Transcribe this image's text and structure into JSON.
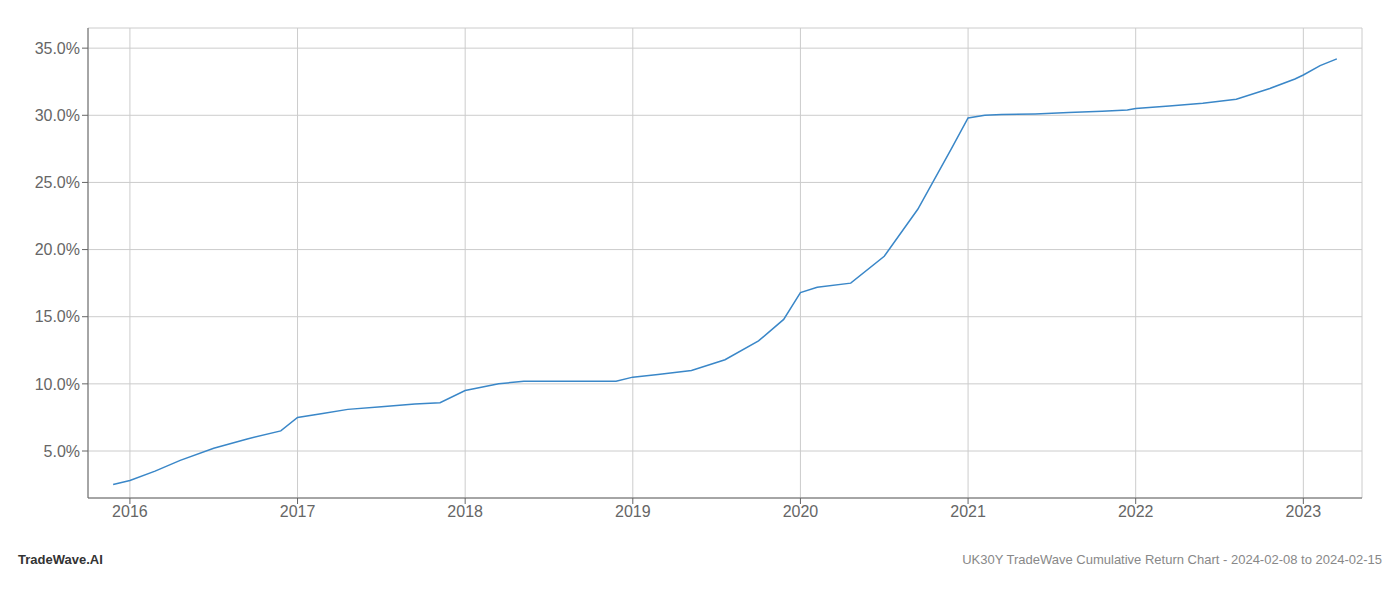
{
  "chart_data": {
    "type": "line",
    "x": [
      2015.9,
      2016.0,
      2016.15,
      2016.3,
      2016.5,
      2016.7,
      2016.9,
      2017.0,
      2017.15,
      2017.3,
      2017.5,
      2017.7,
      2017.85,
      2018.0,
      2018.2,
      2018.35,
      2018.55,
      2018.75,
      2018.9,
      2019.0,
      2019.15,
      2019.35,
      2019.55,
      2019.75,
      2019.9,
      2020.0,
      2020.1,
      2020.3,
      2020.5,
      2020.7,
      2020.9,
      2021.0,
      2021.1,
      2021.2,
      2021.4,
      2021.6,
      2021.8,
      2021.95,
      2022.0,
      2022.2,
      2022.4,
      2022.6,
      2022.8,
      2022.95,
      2023.0,
      2023.1,
      2023.2
    ],
    "values": [
      2.5,
      2.8,
      3.5,
      4.3,
      5.2,
      5.9,
      6.5,
      7.5,
      7.8,
      8.1,
      8.3,
      8.5,
      8.6,
      9.5,
      10.0,
      10.2,
      10.2,
      10.2,
      10.2,
      10.5,
      10.7,
      11.0,
      11.8,
      13.2,
      14.8,
      16.8,
      17.2,
      17.5,
      19.5,
      23.0,
      27.5,
      29.8,
      30.0,
      30.05,
      30.1,
      30.2,
      30.3,
      30.4,
      30.5,
      30.7,
      30.9,
      31.2,
      32.0,
      32.7,
      33.0,
      33.7,
      34.2
    ],
    "color": "#3a87c8",
    "xlim": [
      2015.75,
      2023.35
    ],
    "ylim": [
      1.5,
      36.5
    ],
    "xticks": [
      2016,
      2017,
      2018,
      2019,
      2020,
      2021,
      2022,
      2023
    ],
    "yticks": [
      {
        "value": 5.0,
        "label": "5.0%"
      },
      {
        "value": 10.0,
        "label": "10.0%"
      },
      {
        "value": 15.0,
        "label": "15.0%"
      },
      {
        "value": 20.0,
        "label": "20.0%"
      },
      {
        "value": 25.0,
        "label": "25.0%"
      },
      {
        "value": 30.0,
        "label": "30.0%"
      },
      {
        "value": 35.0,
        "label": "35.0%"
      }
    ],
    "grid": true,
    "annotations": [
      "TradeWave.AI",
      "UK30Y TradeWave Cumulative Return Chart - 2024-02-08 to 2024-02-15"
    ]
  }
}
